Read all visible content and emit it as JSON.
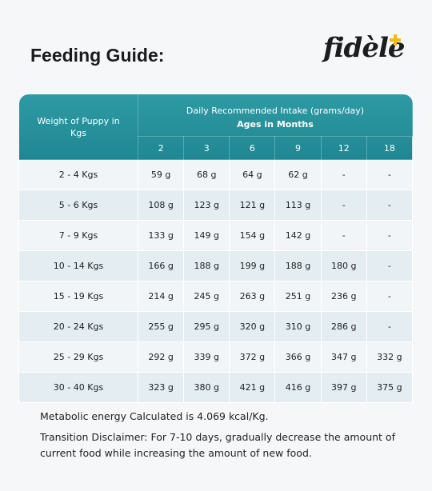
{
  "header": {
    "title": "Feeding Guide:",
    "logo": "fidèle"
  },
  "table": {
    "weight_header": "Weight of Puppy in Kgs",
    "intake_header": "Daily Recommended Intake (grams/day)",
    "ages_header": "Ages in Months",
    "ages": [
      "2",
      "3",
      "6",
      "9",
      "12",
      "18"
    ],
    "rows": [
      [
        "2 - 4 Kgs",
        "59 g",
        "68 g",
        "64 g",
        "62 g",
        "-",
        "-"
      ],
      [
        "5 - 6 Kgs",
        "108 g",
        "123 g",
        "121 g",
        "113 g",
        "-",
        "-"
      ],
      [
        "7 - 9 Kgs",
        "133 g",
        "149 g",
        "154 g",
        "142 g",
        "-",
        "-"
      ],
      [
        "10 - 14 Kgs",
        "166 g",
        "188 g",
        "199 g",
        "188 g",
        "180 g",
        "-"
      ],
      [
        "15 - 19 Kgs",
        "214 g",
        "245 g",
        "263 g",
        "251 g",
        "236 g",
        "-"
      ],
      [
        "20 - 24 Kgs",
        "255 g",
        "295 g",
        "320 g",
        "310 g",
        "286 g",
        "-"
      ],
      [
        "25 - 29 Kgs",
        "292 g",
        "339 g",
        "372 g",
        "366 g",
        "347 g",
        "332 g"
      ],
      [
        "30 - 40 Kgs",
        "323 g",
        "380 g",
        "421 g",
        "416 g",
        "397 g",
        "375 g"
      ]
    ]
  },
  "notes": [
    "Metabolic energy Calculated is 4.069 kcal/Kg.",
    "Transition Disclaimer: For 7-10 days, gradually decrease the amount of current food while increasing the amount of new food."
  ]
}
